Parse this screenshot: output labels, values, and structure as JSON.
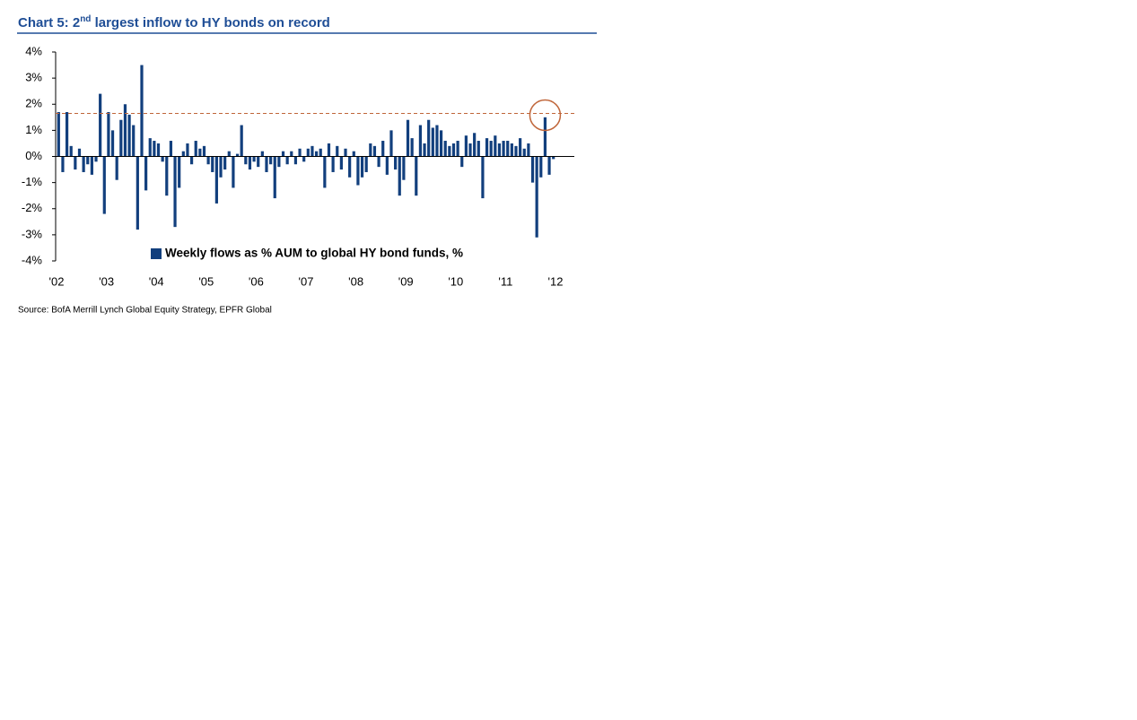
{
  "chart_data": {
    "type": "bar",
    "title": [
      "Chart 5: 2",
      "nd",
      " largest inflow to HY bonds on record"
    ],
    "legend": "Weekly flows as % AUM to global HY bond funds, %",
    "source": "Source: BofA Merrill Lynch Global Equity Strategy, EPFR Global",
    "color": "#123f7d",
    "reference_line": {
      "value": 1.65,
      "color": "#c0663a"
    },
    "values": [
      1.7,
      -0.6,
      1.7,
      0.4,
      -0.5,
      0.3,
      -0.6,
      -0.3,
      -0.7,
      -0.2,
      2.4,
      -2.2,
      1.7,
      1.0,
      -0.9,
      1.4,
      2.0,
      1.6,
      1.2,
      -2.8,
      3.5,
      -1.3,
      0.7,
      0.6,
      0.5,
      -0.2,
      -1.5,
      0.6,
      -2.7,
      -1.2,
      0.2,
      0.5,
      -0.3,
      0.6,
      0.3,
      0.4,
      -0.3,
      -0.6,
      -1.8,
      -0.8,
      -0.5,
      0.2,
      -1.2,
      0.1,
      1.2,
      -0.3,
      -0.5,
      -0.2,
      -0.4,
      0.2,
      -0.6,
      -0.3,
      -1.6,
      -0.4,
      0.2,
      -0.3,
      0.2,
      -0.3,
      0.3,
      -0.2,
      0.3,
      0.4,
      0.2,
      0.3,
      -1.2,
      0.5,
      -0.6,
      0.4,
      -0.5,
      0.3,
      -0.8,
      0.2,
      -1.1,
      -0.8,
      -0.6,
      0.5,
      0.4,
      -0.4,
      0.6,
      -0.7,
      1.0,
      -0.5,
      -1.5,
      -0.9,
      1.4,
      0.7,
      -1.5,
      1.2,
      0.5,
      1.4,
      1.1,
      1.2,
      1.0,
      0.6,
      0.4,
      0.5,
      0.6,
      -0.4,
      0.8,
      0.5,
      0.9,
      0.6,
      -1.6,
      0.7,
      0.6,
      0.8,
      0.5,
      0.6,
      0.6,
      0.5,
      0.4,
      0.7,
      0.3,
      0.5,
      -1.0,
      -3.1,
      -0.8,
      1.5,
      -0.7,
      -0.1
    ],
    "xlim": [
      2002,
      2012
    ],
    "xticks": [
      {
        "value": 2002,
        "label": "'02"
      },
      {
        "value": 2003,
        "label": "'03"
      },
      {
        "value": 2004,
        "label": "'04"
      },
      {
        "value": 2005,
        "label": "'05"
      },
      {
        "value": 2006,
        "label": "'06"
      },
      {
        "value": 2007,
        "label": "'07"
      },
      {
        "value": 2008,
        "label": "'08"
      },
      {
        "value": 2009,
        "label": "'09"
      },
      {
        "value": 2010,
        "label": "'10"
      },
      {
        "value": 2011,
        "label": "'11"
      },
      {
        "value": 2012,
        "label": "'12"
      }
    ],
    "ylim": [
      -4,
      4
    ],
    "yticks": [
      {
        "value": 4,
        "label": "4%"
      },
      {
        "value": 3,
        "label": "3%"
      },
      {
        "value": 2,
        "label": "2%"
      },
      {
        "value": 1,
        "label": "1%"
      },
      {
        "value": 0,
        "label": "0%"
      },
      {
        "value": -1,
        "label": "-1%"
      },
      {
        "value": -2,
        "label": "-2%"
      },
      {
        "value": -3,
        "label": "-3%"
      },
      {
        "value": -4,
        "label": "-4%"
      }
    ]
  }
}
